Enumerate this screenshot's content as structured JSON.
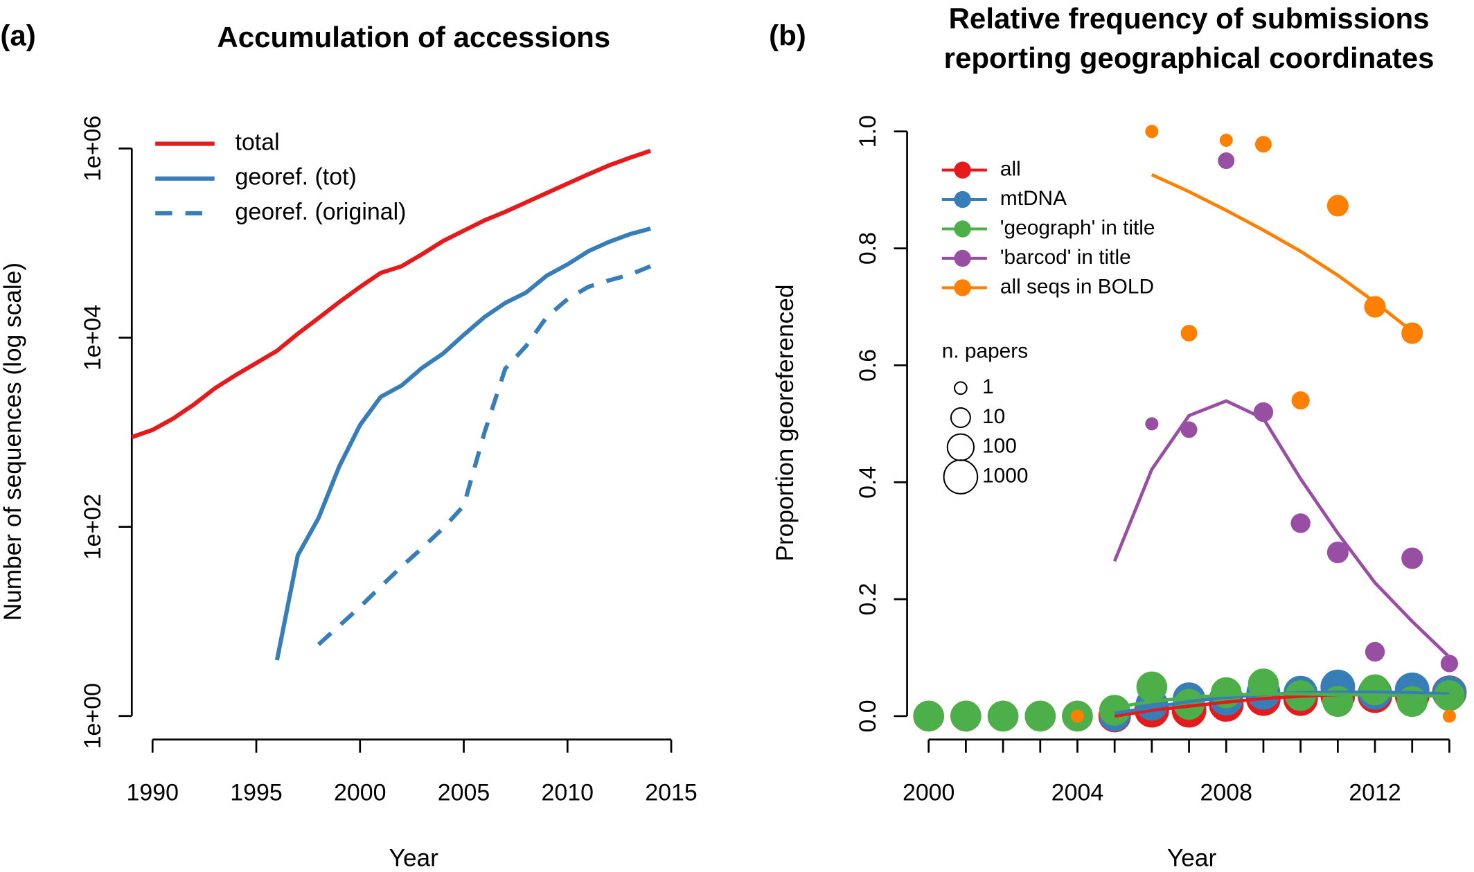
{
  "chart_data": [
    {
      "type": "line",
      "panel": "(a)",
      "title": "Accumulation of accessions",
      "xlabel": "Year",
      "ylabel": "Number of sequences (log scale)",
      "log_y": true,
      "legend": "top-left",
      "x": [
        1989,
        1990,
        1991,
        1992,
        1993,
        1994,
        1995,
        1996,
        1997,
        1998,
        1999,
        2000,
        2001,
        2002,
        2003,
        2004,
        2005,
        2006,
        2007,
        2008,
        2009,
        2010,
        2011,
        2012,
        2013,
        2014
      ],
      "series": [
        {
          "name": "total",
          "color": "#e41a1c",
          "linestyle": "solid",
          "values": [
            887,
            1060,
            1400,
            1970,
            2910,
            4010,
            5400,
            7260,
            11000,
            16100,
            23800,
            34300,
            48400,
            56800,
            76400,
            105000,
            135000,
            174000,
            214000,
            269000,
            338000,
            425000,
            533000,
            662000,
            796000,
            944000
          ]
        },
        {
          "name": "georef. (tot)",
          "color": "#377eb8",
          "linestyle": "solid",
          "values": [
            null,
            null,
            null,
            null,
            null,
            null,
            null,
            3.9,
            50,
            124,
            437,
            1190,
            2370,
            3120,
            4810,
            6780,
            10700,
            16500,
            23300,
            29900,
            45200,
            59400,
            81900,
            103000,
            124000,
            142000
          ]
        },
        {
          "name": "georef. (original)",
          "color": "#377eb8",
          "linestyle": "dashed",
          "values": [
            null,
            null,
            null,
            null,
            null,
            null,
            null,
            null,
            null,
            5.7,
            9.0,
            14.2,
            23.4,
            37.9,
            59.8,
            96.6,
            167,
            995,
            4700,
            8140,
            16500,
            25500,
            34400,
            40300,
            46200,
            56800
          ]
        }
      ],
      "xlim": [
        1989,
        2015
      ],
      "xticks": [
        1990,
        1995,
        2000,
        2005,
        2010,
        2015
      ],
      "ylim": [
        1,
        1000000
      ],
      "yticks": [
        {
          "value": 1,
          "label": "1e+00"
        },
        {
          "value": 100,
          "label": "1e+02"
        },
        {
          "value": 10000,
          "label": "1e+04"
        },
        {
          "value": 1000000,
          "label": "1e+06"
        }
      ]
    },
    {
      "type": "scatter",
      "panel": "(b)",
      "title": [
        "Relative frequency of submissions",
        "reporting geographical coordinates"
      ],
      "xlabel": "Year",
      "ylabel": "Proportion  georeferenced",
      "legend": "top-left",
      "size_legend": {
        "title": "n. papers",
        "values": [
          1,
          10,
          100,
          1000
        ]
      },
      "series": [
        {
          "name": "all",
          "color": "#e41a1c",
          "x": [
            2000,
            2001,
            2002,
            2003,
            2004,
            2005,
            2006,
            2007,
            2008,
            2009,
            2010,
            2011,
            2012,
            2013,
            2014
          ],
          "values": [
            0,
            0,
            0,
            0,
            0,
            0,
            0.01,
            0.01,
            0.02,
            0.03,
            0.03,
            0.035,
            0.035,
            0.035,
            0.04
          ],
          "sizes": [
            300,
            300,
            300,
            300,
            300,
            500,
            1000,
            1000,
            1000,
            1000,
            1000,
            1000,
            1000,
            1000,
            1000
          ],
          "fit_x": [
            2005,
            2006,
            2007,
            2008,
            2009,
            2010,
            2011,
            2012,
            2013,
            2014
          ],
          "fit": [
            0,
            0.01,
            0.017,
            0.024,
            0.03,
            0.034,
            0.037,
            0.039,
            0.038,
            0.036
          ]
        },
        {
          "name": "mtDNA",
          "color": "#377eb8",
          "x": [
            2000,
            2001,
            2002,
            2003,
            2004,
            2005,
            2006,
            2007,
            2008,
            2009,
            2010,
            2011,
            2012,
            2013,
            2014
          ],
          "values": [
            0,
            0,
            0,
            0,
            0,
            0,
            0.02,
            0.03,
            0.03,
            0.04,
            0.04,
            0.05,
            0.04,
            0.045,
            0.04
          ],
          "sizes": [
            200,
            200,
            200,
            200,
            200,
            300,
            500,
            500,
            800,
            800,
            800,
            1000,
            800,
            1000,
            800
          ],
          "fit_x": [
            2005,
            2006,
            2007,
            2008,
            2009,
            2010,
            2011,
            2012,
            2013,
            2014
          ],
          "fit": [
            0.005,
            0.015,
            0.025,
            0.032,
            0.037,
            0.04,
            0.041,
            0.041,
            0.04,
            0.038
          ]
        },
        {
          "name": "'geograph' in title",
          "color": "#4daf4a",
          "x": [
            2000,
            2001,
            2002,
            2003,
            2004,
            2005,
            2006,
            2007,
            2008,
            2009,
            2010,
            2011,
            2012,
            2013,
            2014
          ],
          "values": [
            0,
            0,
            0,
            0,
            0,
            0.01,
            0.05,
            0.02,
            0.04,
            0.055,
            0.035,
            0.025,
            0.045,
            0.025,
            0.035
          ],
          "sizes": [
            300,
            300,
            300,
            300,
            300,
            300,
            300,
            300,
            300,
            300,
            300,
            300,
            300,
            300,
            300
          ],
          "fit_x": [
            2005,
            2006,
            2007,
            2008,
            2009,
            2010,
            2011,
            2012,
            2013,
            2014
          ],
          "fit": [
            0.015,
            0.025,
            0.032,
            0.036,
            0.038,
            0.038,
            0.037,
            0.036,
            0.035,
            0.034
          ]
        },
        {
          "name": "'barcod' in title",
          "color": "#984ea3",
          "x": [
            2006,
            2007,
            2008,
            2009,
            2010,
            2011,
            2012,
            2013,
            2014
          ],
          "values": [
            0.5,
            0.49,
            0.95,
            0.52,
            0.33,
            0.28,
            0.11,
            0.27,
            0.09
          ],
          "sizes": [
            1,
            3,
            3,
            8,
            8,
            15,
            8,
            15,
            4
          ],
          "fit_x": [
            2005,
            2006,
            2007,
            2008,
            2009,
            2010,
            2011,
            2012,
            2013,
            2014
          ],
          "fit": [
            0.265,
            0.422,
            0.514,
            0.539,
            0.509,
            0.406,
            0.313,
            0.228,
            0.162,
            0.101
          ]
        },
        {
          "name": "all seqs in BOLD",
          "color": "#ff7f00",
          "x": [
            2004,
            2006,
            2007,
            2008,
            2009,
            2010,
            2011,
            2012,
            2013,
            2014
          ],
          "values": [
            0,
            1,
            0.655,
            0.985,
            0.978,
            0.54,
            0.873,
            0.7,
            0.655,
            0
          ],
          "sizes": [
            1,
            1,
            3,
            1,
            3,
            5,
            15,
            15,
            15,
            1
          ],
          "fit_x": [
            2006,
            2007,
            2008,
            2009,
            2010,
            2011,
            2012,
            2013
          ],
          "fit": [
            0.926,
            0.897,
            0.865,
            0.831,
            0.795,
            0.754,
            0.708,
            0.658
          ]
        }
      ],
      "xlim": [
        1999.42,
        2014.58
      ],
      "xticks": [
        2000,
        2004,
        2008,
        2012
      ],
      "xminorticks": [
        2001,
        2002,
        2003,
        2005,
        2006,
        2007,
        2009,
        2010,
        2011,
        2013,
        2014
      ],
      "ylim": [
        -0.04,
        1.04
      ],
      "yticks": [
        {
          "value": 0,
          "label": "0.0"
        },
        0.2,
        0.4,
        0.6,
        0.8,
        {
          "value": 1,
          "label": "1.0"
        }
      ]
    }
  ]
}
